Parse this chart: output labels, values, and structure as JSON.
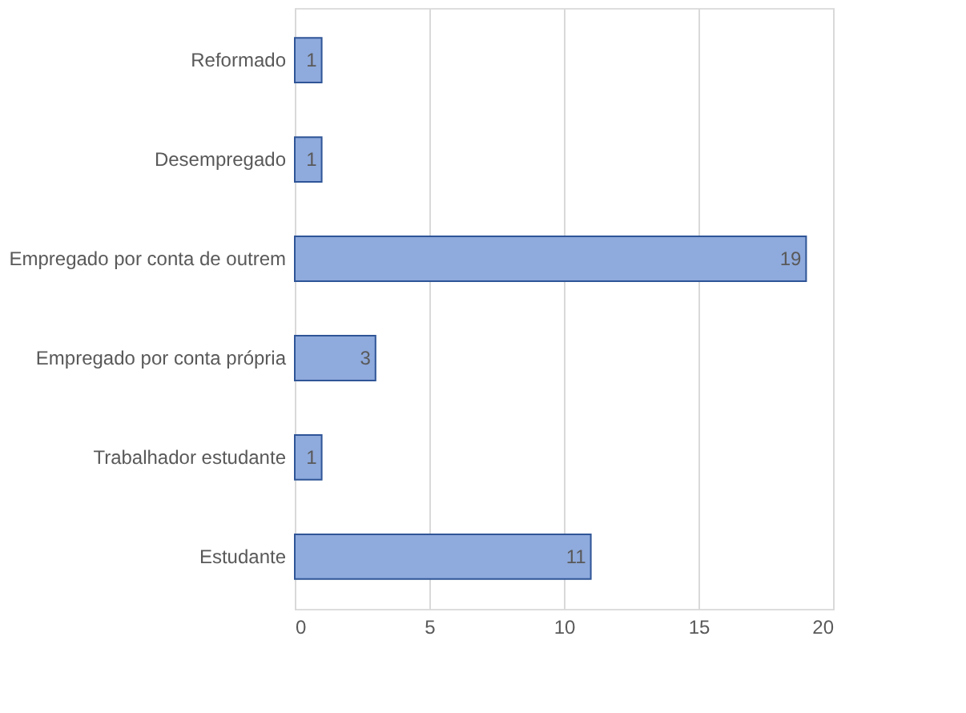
{
  "chart_data": {
    "type": "bar",
    "orientation": "horizontal",
    "categories": [
      "Reformado",
      "Desempregado",
      "Empregado por conta de outrem",
      "Empregado por conta própria",
      "Trabalhador estudante",
      "Estudante"
    ],
    "values": [
      1,
      1,
      19,
      3,
      1,
      11
    ],
    "color": "#8faadc",
    "xlim": [
      0,
      20
    ],
    "xticks": [
      0,
      5,
      10,
      15,
      20
    ],
    "grid": "x",
    "data_labels": true
  }
}
